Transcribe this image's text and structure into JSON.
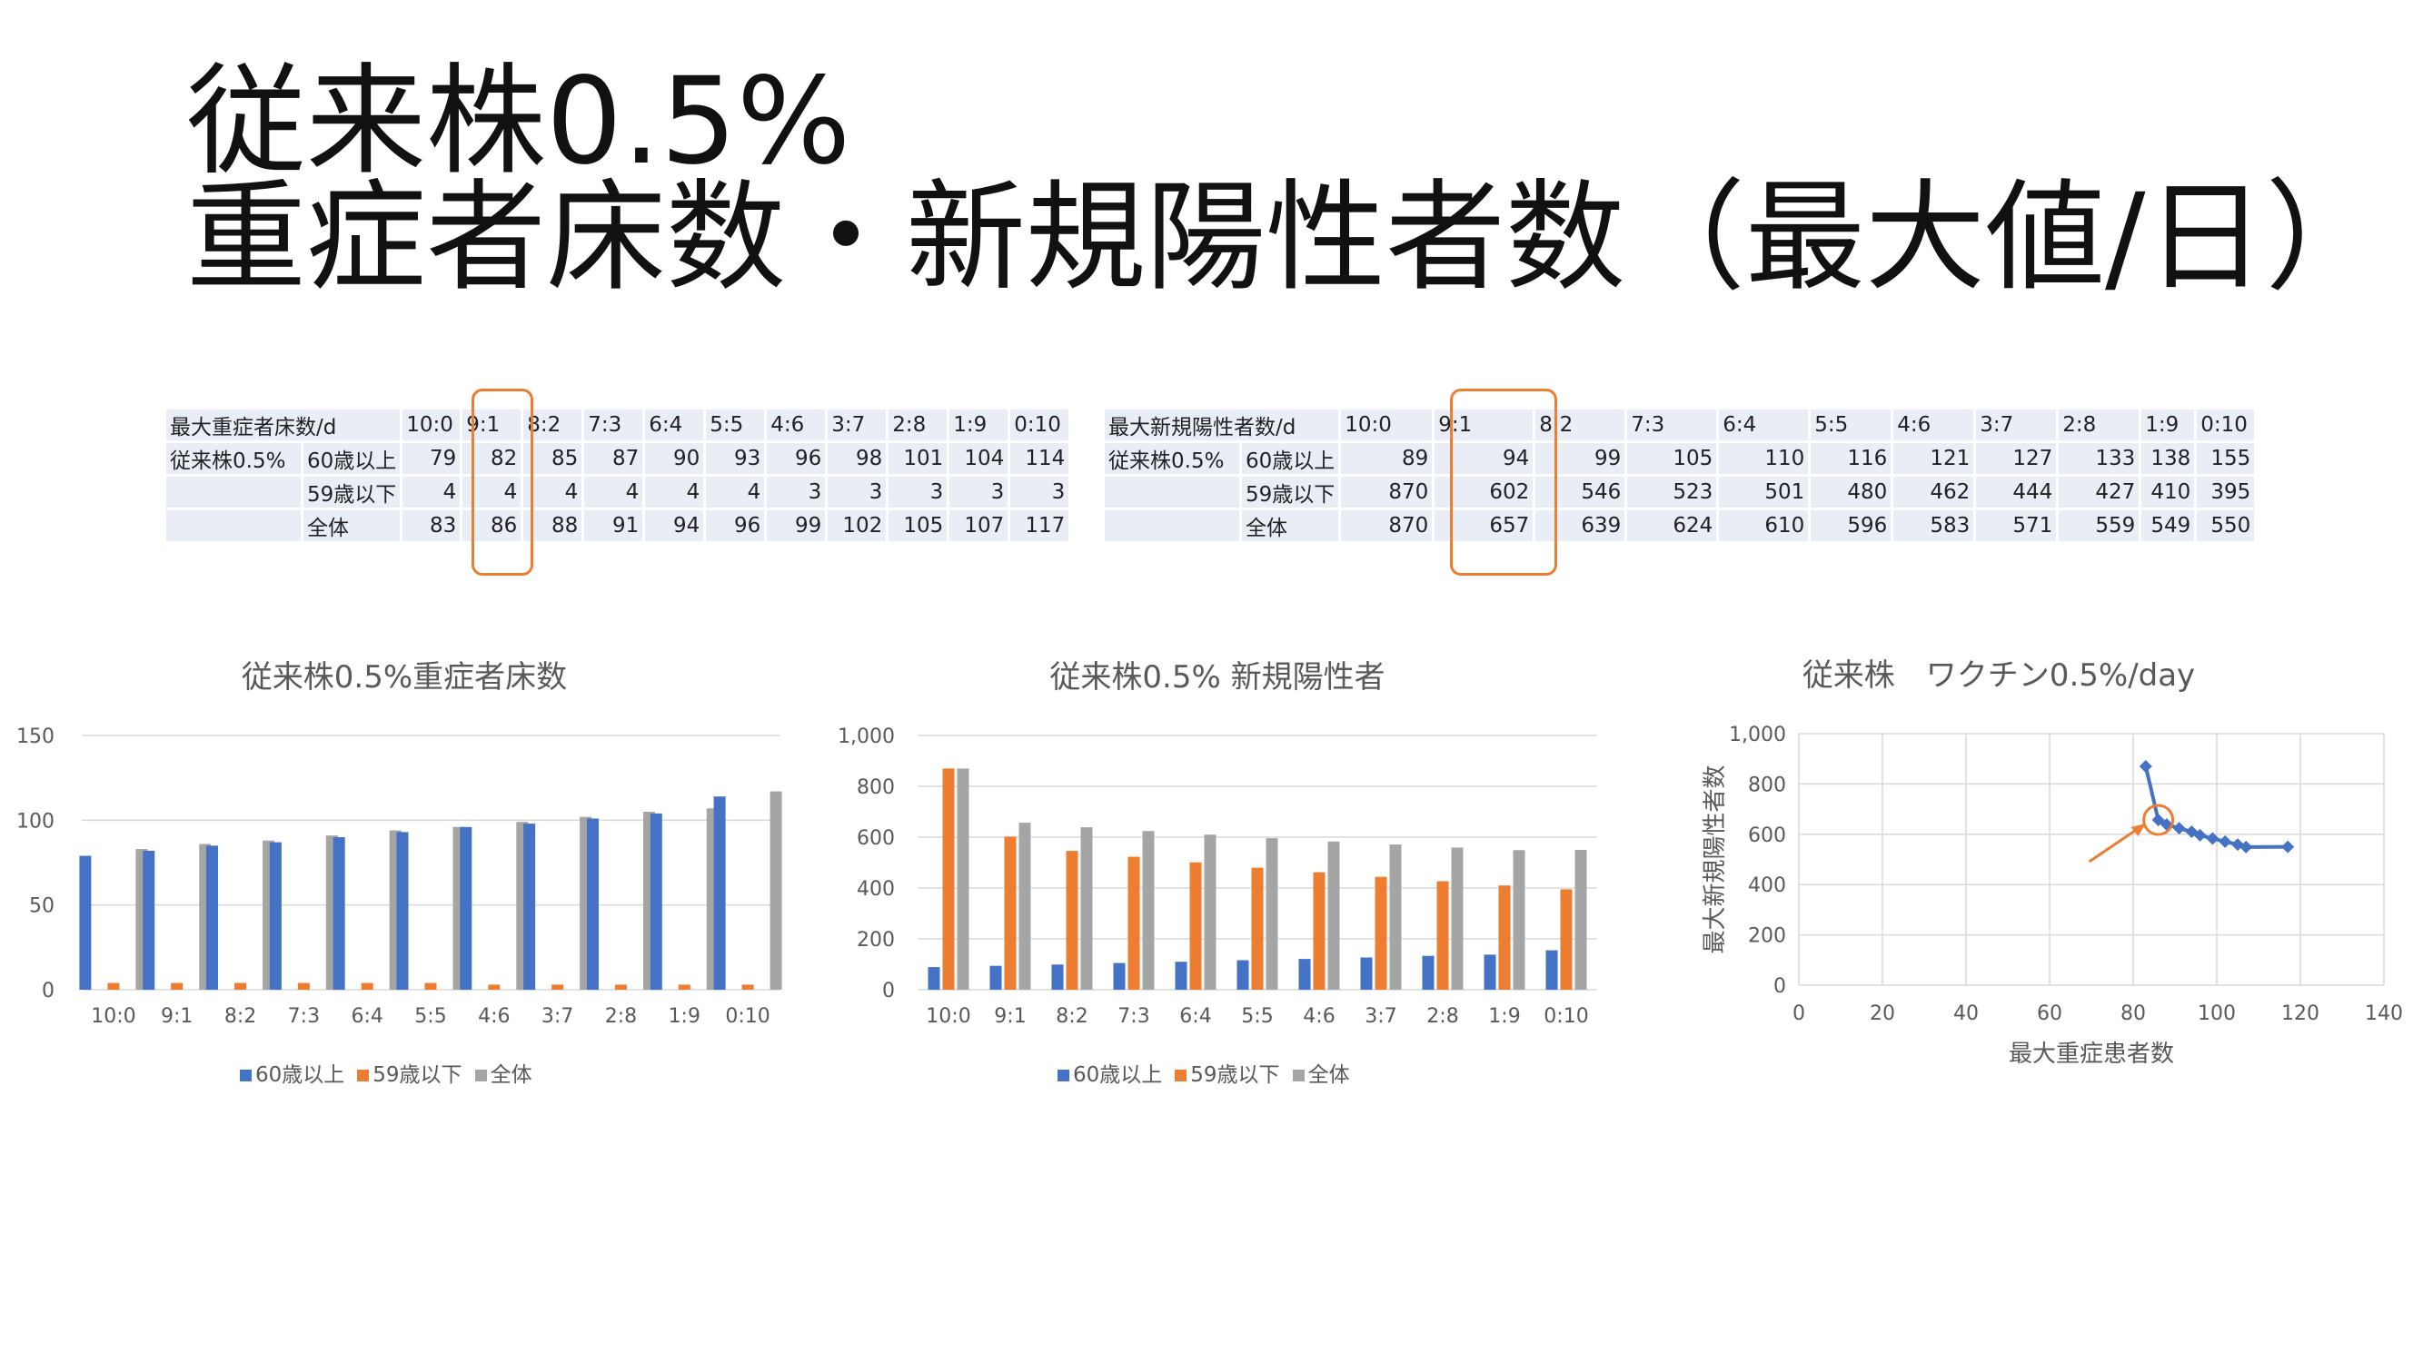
{
  "title": {
    "line1": "従来株0.5%",
    "line2": "重症者床数・新規陽性者数（最大値/日）"
  },
  "table_beds": {
    "header_label": "最大重症者床数/d",
    "columns": [
      "10:0",
      "9:1",
      "8:2",
      "7:3",
      "6:4",
      "5:5",
      "4:6",
      "3:7",
      "2:8",
      "1:9",
      "0:10"
    ],
    "group_label": "従来株0.5%",
    "rows": [
      {
        "label": "60歳以上",
        "values": [
          "79",
          "82",
          "85",
          "87",
          "90",
          "93",
          "96",
          "98",
          "101",
          "104",
          "114"
        ]
      },
      {
        "label": "59歳以下",
        "values": [
          "4",
          "4",
          "4",
          "4",
          "4",
          "4",
          "3",
          "3",
          "3",
          "3",
          "3"
        ]
      },
      {
        "label": "全体",
        "values": [
          "83",
          "86",
          "88",
          "91",
          "94",
          "96",
          "99",
          "102",
          "105",
          "107",
          "117"
        ]
      }
    ]
  },
  "table_cases": {
    "header_label": "最大新規陽性者数/d",
    "columns": [
      "10:0",
      "9:1",
      "8:2",
      "7:3",
      "6:4",
      "5:5",
      "4:6",
      "3:7",
      "2:8",
      "1:9",
      "0:10"
    ],
    "group_label": "従来株0.5%",
    "rows": [
      {
        "label": "60歳以上",
        "values": [
          "89",
          "94",
          "99",
          "105",
          "110",
          "116",
          "121",
          "127",
          "133",
          "138",
          "155"
        ]
      },
      {
        "label": "59歳以下",
        "values": [
          "870",
          "602",
          "546",
          "523",
          "501",
          "480",
          "462",
          "444",
          "427",
          "410",
          "395"
        ]
      },
      {
        "label": "全体",
        "values": [
          "870",
          "657",
          "639",
          "624",
          "610",
          "596",
          "583",
          "571",
          "559",
          "549",
          "550"
        ]
      }
    ]
  },
  "legend": {
    "s1": "60歳以上",
    "s2": "59歳以下",
    "s3": "全体"
  },
  "colors": {
    "blue": "#4472c4",
    "orange": "#ed7d31",
    "gray": "#a5a5a5",
    "highlight": "#ed7d31"
  },
  "chart_data": [
    {
      "type": "bar",
      "title": "従来株0.5%重症者床数",
      "categories": [
        "10:0",
        "9:1",
        "8:2",
        "7:3",
        "6:4",
        "5:5",
        "4:6",
        "3:7",
        "2:8",
        "1:9",
        "0:10"
      ],
      "series": [
        {
          "name": "60歳以上",
          "values": [
            79,
            82,
            85,
            87,
            90,
            93,
            96,
            98,
            101,
            104,
            114
          ]
        },
        {
          "name": "59歳以下",
          "values": [
            4,
            4,
            4,
            4,
            4,
            4,
            3,
            3,
            3,
            3,
            3
          ]
        },
        {
          "name": "全体",
          "values": [
            83,
            86,
            88,
            91,
            94,
            96,
            99,
            102,
            105,
            107,
            117
          ]
        }
      ],
      "ylim": [
        0,
        150
      ],
      "yticks": [
        "0",
        "50",
        "100",
        "150"
      ],
      "legend_position": "bottom",
      "grid": true
    },
    {
      "type": "bar",
      "title": "従来株0.5% 新規陽性者",
      "categories": [
        "10:0",
        "9:1",
        "8:2",
        "7:3",
        "6:4",
        "5:5",
        "4:6",
        "3:7",
        "2:8",
        "1:9",
        "0:10"
      ],
      "series": [
        {
          "name": "60歳以上",
          "values": [
            89,
            94,
            99,
            105,
            110,
            116,
            121,
            127,
            133,
            138,
            155
          ]
        },
        {
          "name": "59歳以下",
          "values": [
            870,
            602,
            546,
            523,
            501,
            480,
            462,
            444,
            427,
            410,
            395
          ]
        },
        {
          "name": "全体",
          "values": [
            870,
            657,
            639,
            624,
            610,
            596,
            583,
            571,
            559,
            549,
            550
          ]
        }
      ],
      "ylim": [
        0,
        1000
      ],
      "yticks": [
        "0",
        "200",
        "400",
        "600",
        "800",
        "1,000"
      ],
      "legend_position": "bottom",
      "grid": true
    },
    {
      "type": "scatter",
      "title": "従来株　ワクチン0.5%/day",
      "xlabel": "最大重症患者数",
      "ylabel": "最大新規陽性者数",
      "x": [
        83,
        86,
        88,
        91,
        94,
        96,
        99,
        102,
        105,
        107,
        117
      ],
      "y": [
        870,
        657,
        639,
        624,
        610,
        596,
        583,
        571,
        559,
        549,
        550
      ],
      "xlim": [
        0,
        140
      ],
      "ylim": [
        0,
        1000
      ],
      "xticks": [
        "0",
        "20",
        "40",
        "60",
        "80",
        "100",
        "120",
        "140"
      ],
      "yticks": [
        "0",
        "200",
        "400",
        "600",
        "800",
        "1,000"
      ],
      "grid": true,
      "highlight_point": {
        "x": 86,
        "y": 657
      }
    }
  ]
}
